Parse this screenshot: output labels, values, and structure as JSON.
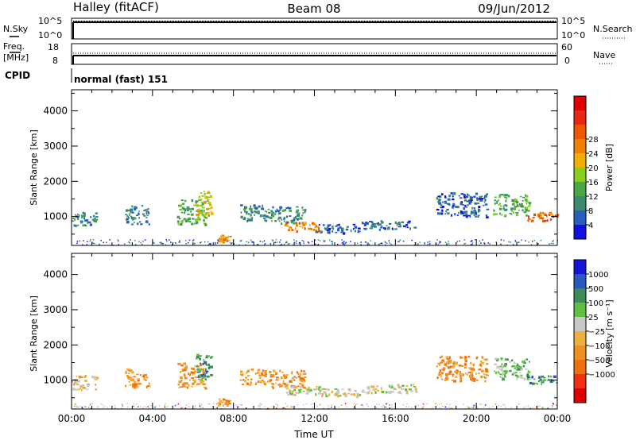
{
  "header": {
    "station": "Halley (fitACF)",
    "beam": "Beam 08",
    "date": "09/Jun/2012"
  },
  "nsky_panel": {
    "left_label": "N.Sky",
    "right_label": "N.Search",
    "tick_top": "10^5",
    "tick_bottom": "10^0"
  },
  "freq_panel": {
    "left_label_1": "Freq.",
    "left_label_2": "[MHz]",
    "right_label": "Nave",
    "left_ticks": [
      "18",
      "8"
    ],
    "right_ticks": [
      "60",
      "0"
    ]
  },
  "cpid": {
    "label": "CPID",
    "mode": "normal (fast) 151"
  },
  "chart_data": [
    {
      "type": "heatmap",
      "name": "power",
      "ylabel": "Slant Range [km]",
      "ylim": [
        180,
        4600
      ],
      "yticks": [
        "1000",
        "2000",
        "3000",
        "4000"
      ],
      "ytick_values": [
        1000,
        2000,
        3000,
        4000
      ],
      "xlim_hours": [
        0,
        24
      ],
      "colorbar": {
        "label": "Power [dB]",
        "ticks": [
          "4",
          "8",
          "12",
          "16",
          "20",
          "24",
          "28"
        ],
        "colors": [
          "#1010e0",
          "#2860c0",
          "#3c8a70",
          "#48a848",
          "#88d020",
          "#f0b000",
          "#f08000",
          "#f05800",
          "#e82810",
          "#e00000"
        ]
      },
      "echo_regions": [
        {
          "t": [
            0.0,
            1.2
          ],
          "r": [
            750,
            1150
          ],
          "level": 2
        },
        {
          "t": [
            2.6,
            3.8
          ],
          "r": [
            800,
            1350
          ],
          "level": 2
        },
        {
          "t": [
            5.2,
            6.6
          ],
          "r": [
            800,
            1500
          ],
          "level": 3
        },
        {
          "t": [
            6.1,
            6.9
          ],
          "r": [
            1050,
            1750
          ],
          "level": 5
        },
        {
          "t": [
            7.2,
            7.8
          ],
          "r": [
            300,
            500
          ],
          "level": 6
        },
        {
          "t": [
            8.3,
            9.8
          ],
          "r": [
            900,
            1350
          ],
          "level": 2
        },
        {
          "t": [
            9.8,
            11.5
          ],
          "r": [
            800,
            1300
          ],
          "level": 2
        },
        {
          "t": [
            10.5,
            12.2
          ],
          "r": [
            600,
            850
          ],
          "level": 6
        },
        {
          "t": [
            12.0,
            14.2
          ],
          "r": [
            550,
            800
          ],
          "level": 1
        },
        {
          "t": [
            14.3,
            17.0
          ],
          "r": [
            650,
            900
          ],
          "level": 1
        },
        {
          "t": [
            18.0,
            20.5
          ],
          "r": [
            1000,
            1700
          ],
          "level": 1
        },
        {
          "t": [
            20.8,
            22.6
          ],
          "r": [
            1050,
            1650
          ],
          "level": 3
        },
        {
          "t": [
            22.4,
            24.0
          ],
          "r": [
            900,
            1150
          ],
          "level": 7
        }
      ]
    },
    {
      "type": "heatmap",
      "name": "velocity",
      "ylabel": "Slant Range [km]",
      "ylim": [
        180,
        4600
      ],
      "yticks": [
        "1000",
        "2000",
        "3000",
        "4000"
      ],
      "ytick_values": [
        1000,
        2000,
        3000,
        4000
      ],
      "xlim_hours": [
        0,
        24
      ],
      "xticks": [
        "00:00",
        "04:00",
        "08:00",
        "12:00",
        "16:00",
        "20:00",
        "00:00"
      ],
      "xlabel": "Time UT",
      "colorbar": {
        "label": "Velocity [m s⁻¹]",
        "ticks": [
          "1000",
          "500",
          "100",
          "25",
          "−25",
          "−100",
          "−500",
          "−1000"
        ],
        "colors": [
          "#1414d8",
          "#2858c0",
          "#3c8c58",
          "#60c040",
          "#c8c8c8",
          "#f0b040",
          "#f09020",
          "#f07010",
          "#f03010",
          "#e00000"
        ]
      },
      "echo_regions": [
        {
          "t": [
            0.0,
            1.2
          ],
          "r": [
            750,
            1150
          ],
          "level": 5
        },
        {
          "t": [
            2.6,
            3.8
          ],
          "r": [
            800,
            1350
          ],
          "level": 6
        },
        {
          "t": [
            5.2,
            6.6
          ],
          "r": [
            800,
            1500
          ],
          "level": 6
        },
        {
          "t": [
            6.1,
            6.9
          ],
          "r": [
            1050,
            1750
          ],
          "level": 2
        },
        {
          "t": [
            7.2,
            7.8
          ],
          "r": [
            300,
            500
          ],
          "level": 6
        },
        {
          "t": [
            8.3,
            9.8
          ],
          "r": [
            900,
            1350
          ],
          "level": 6
        },
        {
          "t": [
            9.8,
            11.5
          ],
          "r": [
            800,
            1300
          ],
          "level": 6
        },
        {
          "t": [
            10.5,
            12.2
          ],
          "r": [
            600,
            850
          ],
          "level": 4
        },
        {
          "t": [
            12.0,
            14.2
          ],
          "r": [
            550,
            800
          ],
          "level": 4
        },
        {
          "t": [
            14.3,
            17.0
          ],
          "r": [
            650,
            900
          ],
          "level": 4
        },
        {
          "t": [
            18.0,
            20.5
          ],
          "r": [
            1000,
            1700
          ],
          "level": 6
        },
        {
          "t": [
            20.8,
            22.6
          ],
          "r": [
            1050,
            1650
          ],
          "level": 3
        },
        {
          "t": [
            22.4,
            24.0
          ],
          "r": [
            900,
            1150
          ],
          "level": 2
        }
      ]
    }
  ]
}
